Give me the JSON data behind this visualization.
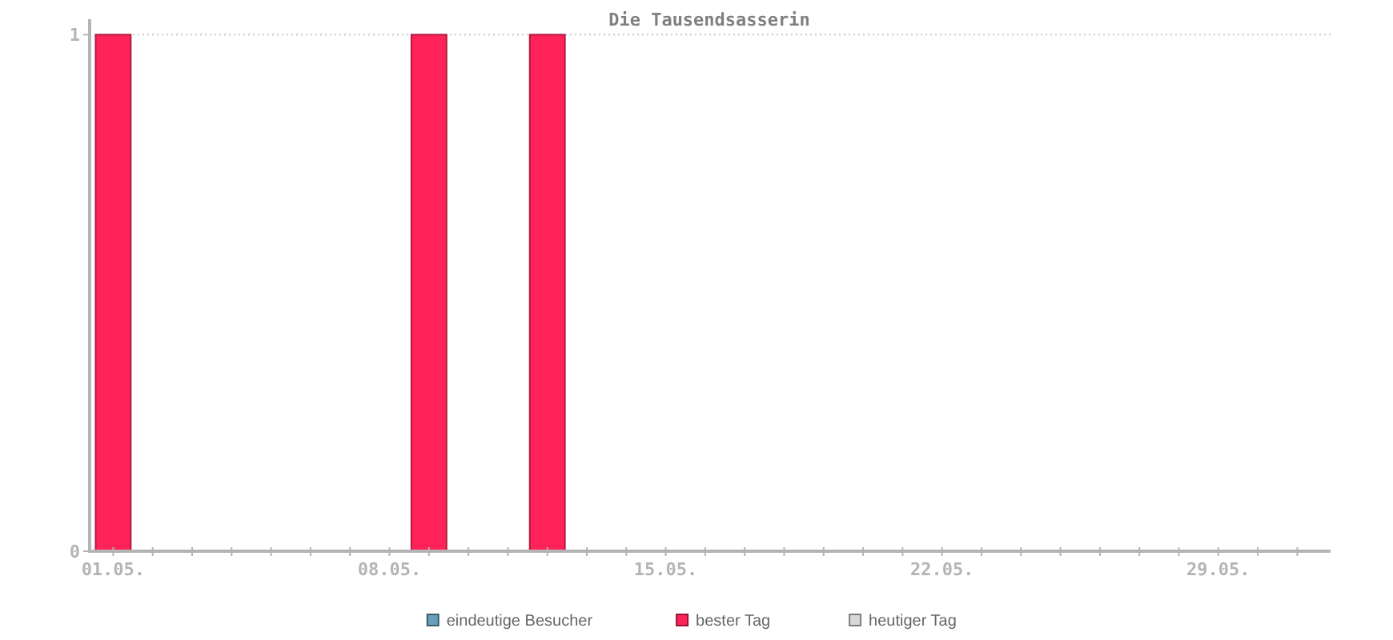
{
  "chart_data": {
    "type": "bar",
    "title": "Die Tausendsasserin",
    "categories": [
      "01.05.",
      null,
      null,
      null,
      null,
      null,
      null,
      "08.05.",
      null,
      null,
      null,
      null,
      null,
      null,
      "15.05.",
      null,
      null,
      null,
      null,
      null,
      null,
      "22.05.",
      null,
      null,
      null,
      null,
      null,
      null,
      "29.05.",
      null,
      null
    ],
    "series": [
      {
        "name": "eindeutige Besucher",
        "color": "#6a9fbb",
        "values": [
          null,
          null,
          null,
          null,
          null,
          null,
          null,
          null,
          null,
          null,
          null,
          null,
          null,
          null,
          null,
          null,
          null,
          null,
          null,
          null,
          null,
          null,
          null,
          null,
          null,
          null,
          null,
          null,
          null,
          null,
          null
        ]
      },
      {
        "name": "bester Tag",
        "color": "#ff2359",
        "values": [
          1,
          null,
          null,
          null,
          null,
          null,
          null,
          null,
          1,
          null,
          null,
          1,
          null,
          null,
          null,
          null,
          null,
          null,
          null,
          null,
          null,
          null,
          null,
          null,
          null,
          null,
          null,
          null,
          null,
          null,
          null
        ]
      },
      {
        "name": "heutiger Tag",
        "color": "#d8d8d8",
        "values": [
          null,
          null,
          null,
          null,
          null,
          null,
          null,
          null,
          null,
          null,
          null,
          null,
          null,
          null,
          null,
          null,
          null,
          null,
          null,
          null,
          null,
          null,
          null,
          null,
          null,
          null,
          null,
          null,
          null,
          null,
          null
        ]
      }
    ],
    "stacked": true,
    "ylim": [
      0,
      1.03
    ],
    "yticks": [
      0,
      1
    ],
    "grid": "y",
    "legend": "bottom"
  }
}
